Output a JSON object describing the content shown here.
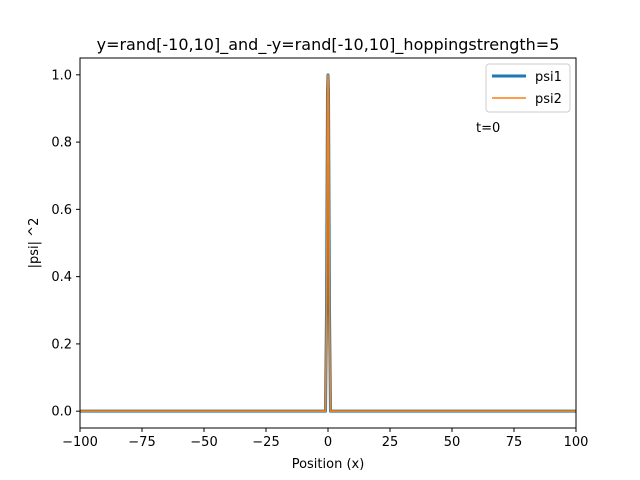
{
  "chart_data": {
    "type": "line",
    "title": "y=rand[-10,10]_and_-y=rand[-10,10]_hoppingstrength=5",
    "xlabel": "Position (x)",
    "ylabel": "|psi| ^2",
    "xlim": [
      -100,
      100
    ],
    "ylim": [
      -0.05,
      1.05
    ],
    "xticks": [
      -100,
      -75,
      -50,
      -25,
      0,
      25,
      50,
      75,
      100
    ],
    "xtick_labels": [
      "−100",
      "−75",
      "−50",
      "−25",
      "0",
      "25",
      "50",
      "75",
      "100"
    ],
    "yticks": [
      0.0,
      0.2,
      0.4,
      0.6,
      0.8,
      1.0
    ],
    "ytick_labels": [
      "0.0",
      "0.2",
      "0.4",
      "0.6",
      "0.8",
      "1.0"
    ],
    "grid": false,
    "legend_position": "upper-right",
    "annotation": {
      "text": "t=0",
      "x": 65,
      "y": 0.84
    },
    "series": [
      {
        "name": "psi1",
        "color": "#1f77b4",
        "x": [
          -100,
          -1.4,
          -1,
          -0.6,
          -0.2,
          0,
          0.2,
          0.6,
          1,
          1.4,
          100
        ],
        "y": [
          0,
          0,
          0,
          0.3,
          0.95,
          1.0,
          0.95,
          0.3,
          0,
          0,
          0
        ]
      },
      {
        "name": "psi2",
        "color": "#ff7f0e",
        "x": [
          -100,
          -1.4,
          -1,
          -0.6,
          -0.2,
          0,
          0.2,
          0.6,
          1,
          1.4,
          100
        ],
        "y": [
          0,
          0,
          0,
          0.3,
          0.95,
          1.0,
          0.95,
          0.3,
          0,
          0,
          0
        ]
      }
    ]
  }
}
